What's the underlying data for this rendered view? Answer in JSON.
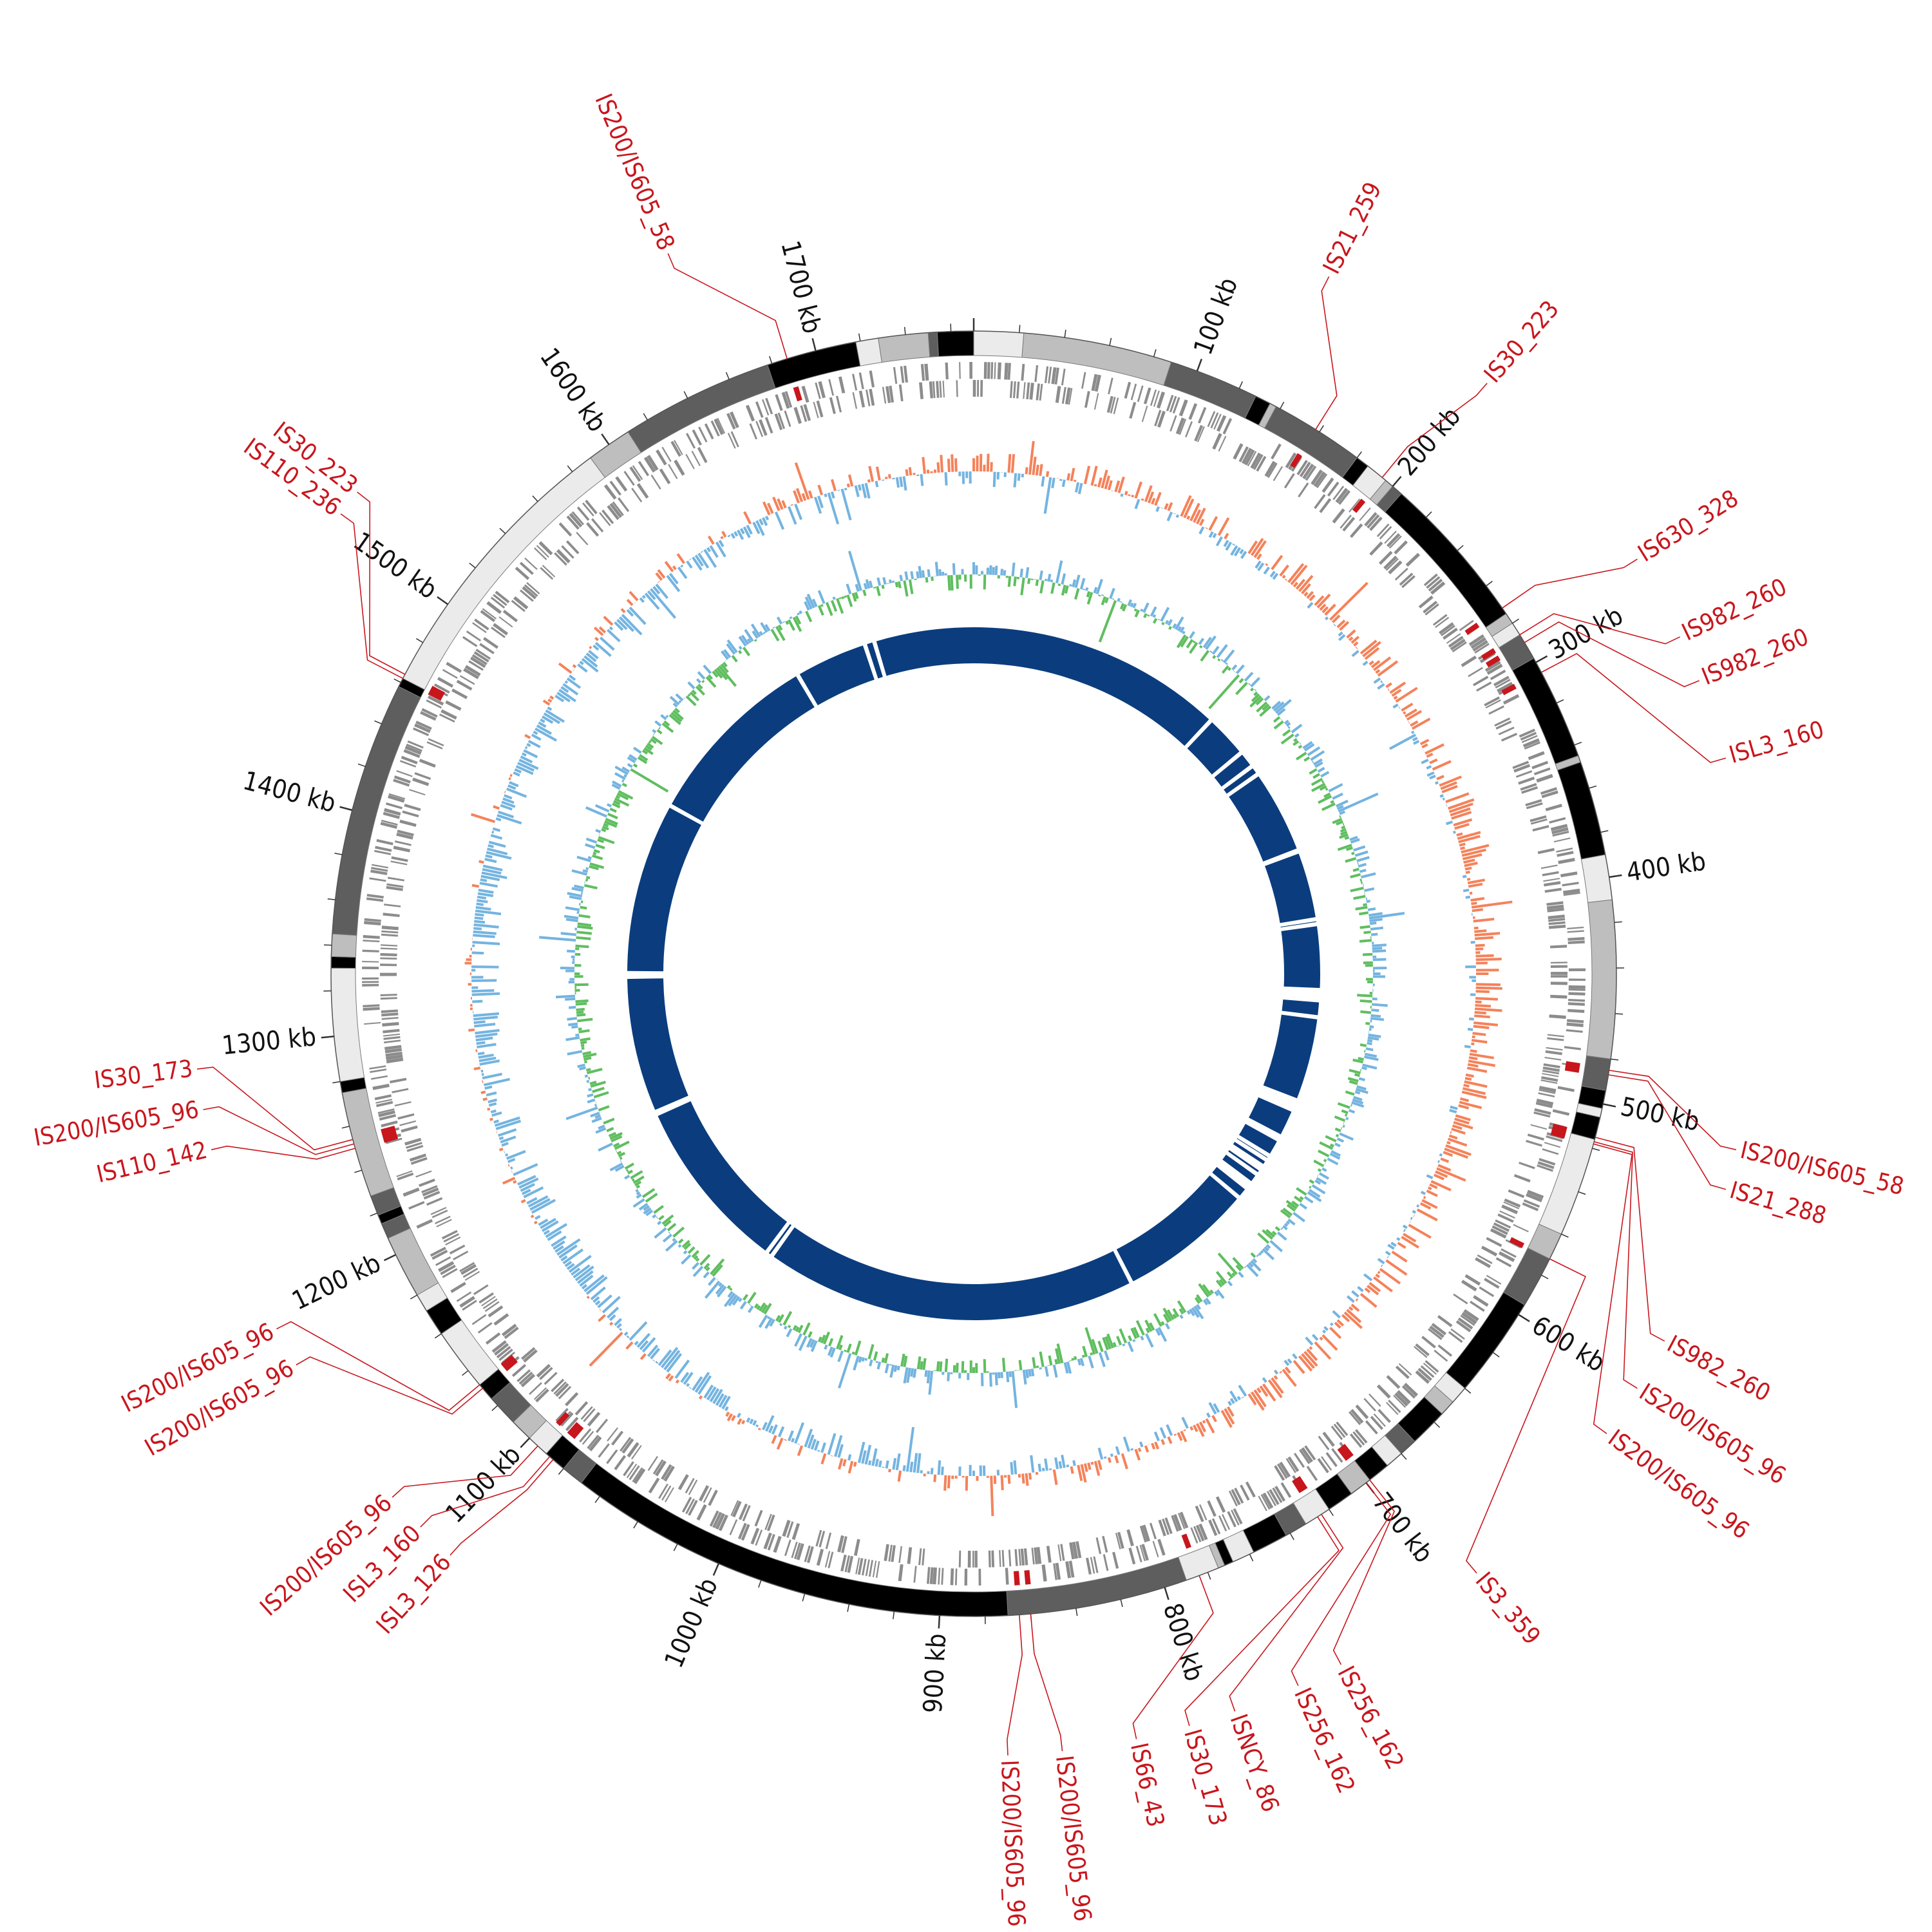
{
  "genome": {
    "length_kb": 1770,
    "tick_labels": [
      {
        "kb": 100,
        "text": "100 kb"
      },
      {
        "kb": 200,
        "text": "200 kb"
      },
      {
        "kb": 300,
        "text": "300 kb"
      },
      {
        "kb": 400,
        "text": "400 kb"
      },
      {
        "kb": 500,
        "text": "500 kb"
      },
      {
        "kb": 600,
        "text": "600 kb"
      },
      {
        "kb": 700,
        "text": "700 kb"
      },
      {
        "kb": 800,
        "text": "800 kb"
      },
      {
        "kb": 900,
        "text": "900 kb"
      },
      {
        "kb": 1000,
        "text": "1000 kb"
      },
      {
        "kb": 1100,
        "text": "1100 kb"
      },
      {
        "kb": 1200,
        "text": "1200 kb"
      },
      {
        "kb": 1300,
        "text": "1300 kb"
      },
      {
        "kb": 1400,
        "text": "1400 kb"
      },
      {
        "kb": 1500,
        "text": "1500 kb"
      },
      {
        "kb": 1600,
        "text": "1600 kb"
      },
      {
        "kb": 1700,
        "text": "1700 kb"
      }
    ]
  },
  "contig_blocks": [
    {
      "start": 0,
      "end": 22,
      "shade": "#ebebeb"
    },
    {
      "start": 22,
      "end": 88,
      "shade": "#bebebe"
    },
    {
      "start": 88,
      "end": 128,
      "shade": "#5e5e5e"
    },
    {
      "start": 128,
      "end": 135,
      "shade": "#000000"
    },
    {
      "start": 135,
      "end": 138,
      "shade": "#bebebe"
    },
    {
      "start": 138,
      "end": 180,
      "shade": "#5e5e5e"
    },
    {
      "start": 180,
      "end": 186,
      "shade": "#000000"
    },
    {
      "start": 186,
      "end": 196,
      "shade": "#ebebeb"
    },
    {
      "start": 196,
      "end": 200,
      "shade": "#bebebe"
    },
    {
      "start": 200,
      "end": 205,
      "shade": "#5e5e5e"
    },
    {
      "start": 205,
      "end": 275,
      "shade": "#000000"
    },
    {
      "start": 275,
      "end": 280,
      "shade": "#bebebe"
    },
    {
      "start": 280,
      "end": 286,
      "shade": "#ebebeb"
    },
    {
      "start": 286,
      "end": 298,
      "shade": "#5e5e5e"
    },
    {
      "start": 298,
      "end": 345,
      "shade": "#000000"
    },
    {
      "start": 345,
      "end": 348,
      "shade": "#bebebe"
    },
    {
      "start": 348,
      "end": 390,
      "shade": "#000000"
    },
    {
      "start": 390,
      "end": 410,
      "shade": "#ebebeb"
    },
    {
      "start": 410,
      "end": 480,
      "shade": "#bebebe"
    },
    {
      "start": 480,
      "end": 494,
      "shade": "#5e5e5e"
    },
    {
      "start": 494,
      "end": 502,
      "shade": "#000000"
    },
    {
      "start": 502,
      "end": 506,
      "shade": "#ebebeb"
    },
    {
      "start": 506,
      "end": 516,
      "shade": "#000000"
    },
    {
      "start": 516,
      "end": 560,
      "shade": "#ebebeb"
    },
    {
      "start": 560,
      "end": 572,
      "shade": "#bebebe"
    },
    {
      "start": 572,
      "end": 595,
      "shade": "#5e5e5e"
    },
    {
      "start": 595,
      "end": 640,
      "shade": "#000000"
    },
    {
      "start": 640,
      "end": 648,
      "shade": "#ebebeb"
    },
    {
      "start": 648,
      "end": 655,
      "shade": "#bebebe"
    },
    {
      "start": 655,
      "end": 672,
      "shade": "#000000"
    },
    {
      "start": 672,
      "end": 680,
      "shade": "#5e5e5e"
    },
    {
      "start": 680,
      "end": 688,
      "shade": "#ebebeb"
    },
    {
      "start": 688,
      "end": 698,
      "shade": "#000000"
    },
    {
      "start": 698,
      "end": 708,
      "shade": "#bebebe"
    },
    {
      "start": 708,
      "end": 720,
      "shade": "#000000"
    },
    {
      "start": 720,
      "end": 732,
      "shade": "#ebebeb"
    },
    {
      "start": 732,
      "end": 742,
      "shade": "#5e5e5e"
    },
    {
      "start": 742,
      "end": 758,
      "shade": "#000000"
    },
    {
      "start": 758,
      "end": 768,
      "shade": "#ebebeb"
    },
    {
      "start": 768,
      "end": 772,
      "shade": "#000000"
    },
    {
      "start": 772,
      "end": 775,
      "shade": "#bebebe"
    },
    {
      "start": 775,
      "end": 790,
      "shade": "#ebebeb"
    },
    {
      "start": 790,
      "end": 870,
      "shade": "#5e5e5e"
    },
    {
      "start": 870,
      "end": 1070,
      "shade": "#000000"
    },
    {
      "start": 1070,
      "end": 1080,
      "shade": "#5e5e5e"
    },
    {
      "start": 1080,
      "end": 1090,
      "shade": "#000000"
    },
    {
      "start": 1090,
      "end": 1100,
      "shade": "#ebebeb"
    },
    {
      "start": 1100,
      "end": 1110,
      "shade": "#bebebe"
    },
    {
      "start": 1110,
      "end": 1124,
      "shade": "#5e5e5e"
    },
    {
      "start": 1124,
      "end": 1132,
      "shade": "#000000"
    },
    {
      "start": 1132,
      "end": 1160,
      "shade": "#ebebeb"
    },
    {
      "start": 1160,
      "end": 1172,
      "shade": "#000000"
    },
    {
      "start": 1172,
      "end": 1180,
      "shade": "#ebebeb"
    },
    {
      "start": 1180,
      "end": 1208,
      "shade": "#bebebe"
    },
    {
      "start": 1208,
      "end": 1215,
      "shade": "#5e5e5e"
    },
    {
      "start": 1215,
      "end": 1219,
      "shade": "#000000"
    },
    {
      "start": 1219,
      "end": 1228,
      "shade": "#5e5e5e"
    },
    {
      "start": 1228,
      "end": 1275,
      "shade": "#bebebe"
    },
    {
      "start": 1275,
      "end": 1280,
      "shade": "#000000"
    },
    {
      "start": 1280,
      "end": 1330,
      "shade": "#ebebeb"
    },
    {
      "start": 1330,
      "end": 1335,
      "shade": "#000000"
    },
    {
      "start": 1335,
      "end": 1345,
      "shade": "#bebebe"
    },
    {
      "start": 1345,
      "end": 1458,
      "shade": "#5e5e5e"
    },
    {
      "start": 1458,
      "end": 1462,
      "shade": "#000000"
    },
    {
      "start": 1462,
      "end": 1590,
      "shade": "#ebebeb"
    },
    {
      "start": 1590,
      "end": 1610,
      "shade": "#bebebe"
    },
    {
      "start": 1610,
      "end": 1678,
      "shade": "#5e5e5e"
    },
    {
      "start": 1678,
      "end": 1718,
      "shade": "#000000"
    },
    {
      "start": 1718,
      "end": 1728,
      "shade": "#ebebeb"
    },
    {
      "start": 1728,
      "end": 1750,
      "shade": "#bebebe"
    },
    {
      "start": 1750,
      "end": 1754,
      "shade": "#5e5e5e"
    },
    {
      "start": 1754,
      "end": 1770,
      "shade": "#000000"
    }
  ],
  "is_elements": [
    {
      "label": "IS21_259",
      "kb": 158,
      "label_angle_deg": 27
    },
    {
      "label": "IS30_223",
      "kb": 194,
      "label_angle_deg": 41
    },
    {
      "label": "IS630_328",
      "kb": 272,
      "label_angle_deg": 58
    },
    {
      "label": "IS982_260",
      "kb": 286,
      "label_angle_deg": 64.5
    },
    {
      "label": "IS982_260",
      "kb": 290,
      "label_angle_deg": 68
    },
    {
      "label": "ISL3_160",
      "kb": 305,
      "label_angle_deg": 74
    },
    {
      "label": "IS200/IS605_58",
      "kb": 485,
      "label_angle_deg": 103
    },
    {
      "label": "IS21_288",
      "kb": 487,
      "label_angle_deg": 106
    },
    {
      "label": "IS982_260",
      "kb": 515,
      "label_angle_deg": 118
    },
    {
      "label": "IS200/IS605_96",
      "kb": 517,
      "label_angle_deg": 122
    },
    {
      "label": "IS200/IS605_96",
      "kb": 518,
      "label_angle_deg": 126
    },
    {
      "label": "IS3_359",
      "kb": 572,
      "label_angle_deg": 140
    },
    {
      "label": "IS256_162",
      "kb": 698,
      "label_angle_deg": 152
    },
    {
      "label": "IS256_162",
      "kb": 700,
      "label_angle_deg": 155.5
    },
    {
      "label": "ISNCY_86",
      "kb": 724,
      "label_angle_deg": 160.5
    },
    {
      "label": "IS30_173",
      "kb": 726,
      "label_angle_deg": 164
    },
    {
      "label": "IS66_43",
      "kb": 784,
      "label_angle_deg": 168
    },
    {
      "label": "IS200/IS605_96",
      "kb": 860,
      "label_angle_deg": 173.5
    },
    {
      "label": "IS200/IS605_96",
      "kb": 865,
      "label_angle_deg": 177.5
    },
    {
      "label": "ISL3_126",
      "kb": 1086,
      "label_angle_deg": 222
    },
    {
      "label": "ISL3_160",
      "kb": 1088,
      "label_angle_deg": 225
    },
    {
      "label": "IS200/IS605_96",
      "kb": 1095,
      "label_angle_deg": 228
    },
    {
      "label": "IS200/IS605_96",
      "kb": 1130,
      "label_angle_deg": 240
    },
    {
      "label": "IS200/IS605_96",
      "kb": 1132,
      "label_angle_deg": 243
    },
    {
      "label": "IS110_142",
      "kb": 1250,
      "label_angle_deg": 257
    },
    {
      "label": "IS200/IS605_96",
      "kb": 1252,
      "label_angle_deg": 260
    },
    {
      "label": "IS30_173",
      "kb": 1254,
      "label_angle_deg": 263
    },
    {
      "label": "IS110_236",
      "kb": 1462,
      "label_angle_deg": 306
    },
    {
      "label": "IS30_223",
      "kb": 1464,
      "label_angle_deg": 308
    },
    {
      "label": "IS200/IS605_58",
      "kb": 1687,
      "label_angle_deg": 337
    }
  ],
  "track_colors": {
    "label_red": "#c8161d",
    "feature_gray": "#8c8c8c",
    "gc_skew_positive": "#f4825a",
    "gc_skew_negative": "#74b4e0",
    "gc_content_positive": "#5fbe5f",
    "gc_content_negative": "#74b4e0",
    "alignment_blue": "#0b3d7e"
  },
  "alignment_gaps_kb": [
    212,
    248,
    262,
    270,
    340,
    341,
    398,
    402,
    460,
    462,
    478,
    552,
    580,
    583,
    598,
    602,
    608,
    611,
    616,
    625,
    628,
    630,
    640,
    752,
    1060,
    1065,
    1210,
    1212,
    1325,
    1328,
    1470,
    1620,
    1680,
    1688
  ]
}
